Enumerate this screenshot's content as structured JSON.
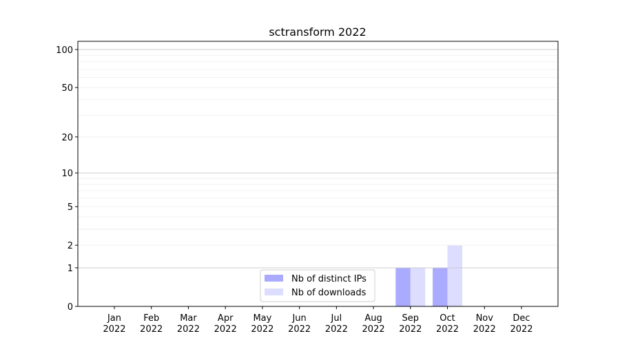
{
  "chart_data": {
    "type": "bar",
    "title": "sctransform 2022",
    "xlabel": "",
    "ylabel": "",
    "y_scale": "log(1+x)",
    "ylim": [
      0,
      116
    ],
    "yticks": [
      0,
      1,
      2,
      5,
      10,
      20,
      50,
      100
    ],
    "grid": true,
    "legend_position": "lower-center",
    "categories": [
      "Jan\n2022",
      "Feb\n2022",
      "Mar\n2022",
      "Apr\n2022",
      "May\n2022",
      "Jun\n2022",
      "Jul\n2022",
      "Aug\n2022",
      "Sep\n2022",
      "Oct\n2022",
      "Nov\n2022",
      "Dec\n2022"
    ],
    "series": [
      {
        "name": "Nb of distinct IPs",
        "color": "#aaaaff",
        "values": [
          0,
          0,
          0,
          0,
          0,
          0,
          0,
          0,
          1,
          1,
          0,
          0
        ]
      },
      {
        "name": "Nb of downloads",
        "color": "#ddddff",
        "values": [
          0,
          0,
          0,
          0,
          0,
          0,
          0,
          0,
          1,
          2,
          0,
          0
        ]
      }
    ]
  }
}
